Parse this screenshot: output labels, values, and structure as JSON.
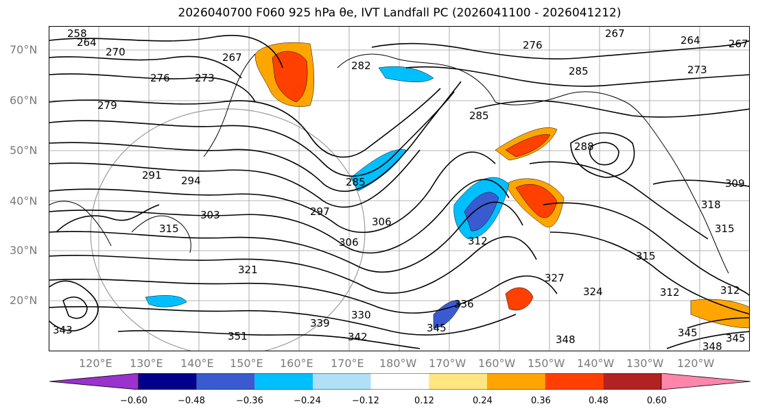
{
  "title": "2026040700 F060 925 hPa θe, IVT Landfall PC (2026041100 - 2026041212)",
  "lat_labels": [
    "70°N",
    "60°N",
    "50°N",
    "40°N",
    "30°N",
    "20°N"
  ],
  "lon_labels": [
    "120°E",
    "130°E",
    "140°E",
    "150°E",
    "160°E",
    "170°E",
    "180°W",
    "170°W",
    "160°W",
    "150°W",
    "140°W",
    "130°W",
    "120°W"
  ],
  "colorbar": {
    "ticks": [
      "−0.60",
      "−0.48",
      "−0.36",
      "−0.24",
      "−0.12",
      "0.12",
      "0.24",
      "0.36",
      "0.48",
      "0.60"
    ],
    "colors": [
      "#9a32cd",
      "#00008b",
      "#3a5bd0",
      "#00bfff",
      "#afe0f8",
      "#ffffff",
      "#ffe680",
      "#ffa500",
      "#ff4000",
      "#b22222",
      "#ff85aa"
    ]
  },
  "contour_labels": [
    "258",
    "264",
    "270",
    "267",
    "276",
    "273",
    "279",
    "282",
    "276",
    "285",
    "267",
    "264",
    "267",
    "273",
    "285",
    "288",
    "291",
    "294",
    "306",
    "297",
    "285",
    "303",
    "309",
    "312",
    "306",
    "315",
    "318",
    "321",
    "327",
    "324",
    "330",
    "336",
    "339",
    "342",
    "345",
    "348",
    "351",
    "343",
    "315",
    "312",
    "315",
    "312",
    "345",
    "348",
    "345"
  ]
}
